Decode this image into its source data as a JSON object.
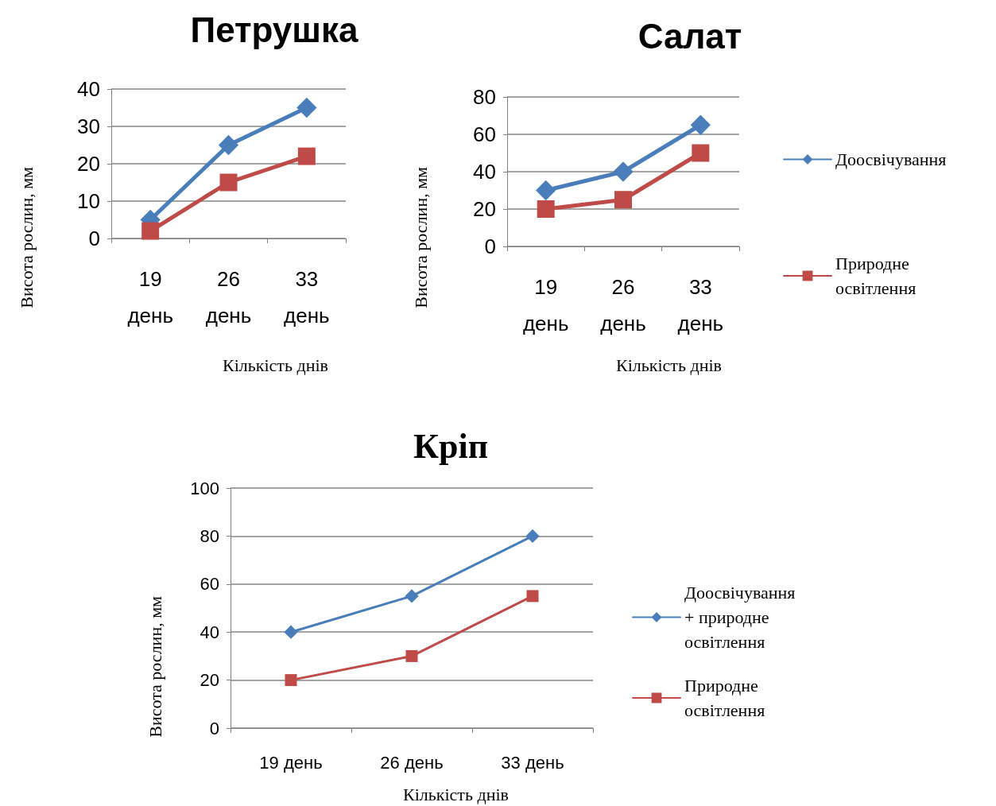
{
  "chart_data": [
    {
      "type": "line",
      "title": "Петрушка",
      "xlabel": "Кількість днів",
      "ylabel": "Висота рослин, мм",
      "categories": [
        "19 день",
        "26 день",
        "33 день"
      ],
      "ylim": [
        0,
        40
      ],
      "yticks": [
        0,
        10,
        20,
        30,
        40
      ],
      "grid": "y",
      "legend": false,
      "line_style": "solid",
      "series": [
        {
          "color": "#4a7ebb",
          "marker": "diamond",
          "values": [
            5,
            25,
            35
          ]
        },
        {
          "color": "#be4b48",
          "marker": "square",
          "values": [
            2,
            15,
            22
          ]
        }
      ]
    },
    {
      "type": "line",
      "title": "Салат",
      "xlabel": "Кількість днів",
      "ylabel": "Висота рослин, мм",
      "categories": [
        "19 день",
        "26 день",
        "33 день"
      ],
      "ylim": [
        0,
        80
      ],
      "yticks": [
        0,
        20,
        40,
        60,
        80
      ],
      "grid": "y",
      "legend": "right",
      "line_style": "solid",
      "series": [
        {
          "name": "Доосвічування",
          "color": "#4a7ebb",
          "marker": "diamond",
          "values": [
            30,
            40,
            65
          ]
        },
        {
          "name": "Природне освітлення",
          "color": "#be4b48",
          "marker": "square",
          "values": [
            20,
            25,
            50
          ]
        }
      ]
    },
    {
      "type": "line",
      "title": "Кріп",
      "xlabel": "Кількість днів",
      "ylabel": "Висота рослин, мм",
      "categories": [
        "19 день",
        "26 день",
        "33 день"
      ],
      "ylim": [
        0,
        100
      ],
      "yticks": [
        0,
        20,
        40,
        60,
        80,
        100
      ],
      "grid": "y",
      "legend": "right",
      "line_style": "solid",
      "series": [
        {
          "name": "Доосвічування + природне освітлення",
          "color": "#4a7ebb",
          "marker": "diamond",
          "values": [
            40,
            55,
            80
          ]
        },
        {
          "name": "Природне освітлення",
          "color": "#be4b48",
          "marker": "square",
          "values": [
            20,
            30,
            55
          ]
        }
      ]
    }
  ]
}
